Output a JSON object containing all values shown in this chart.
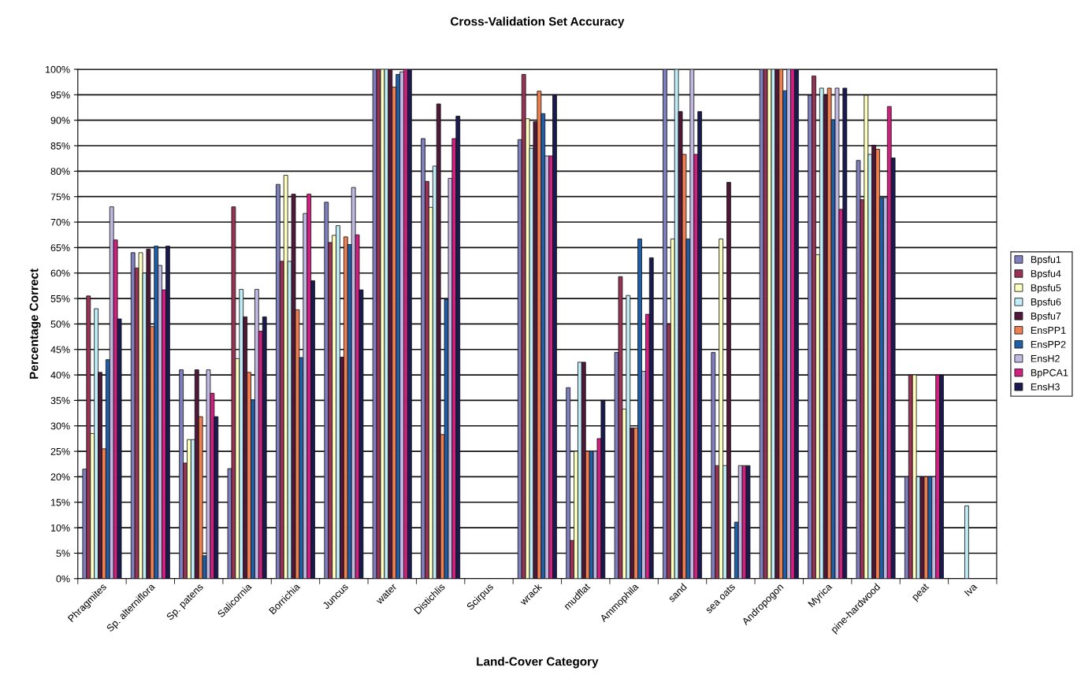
{
  "chart_data": {
    "type": "bar",
    "title": "Cross-Validation Set Accuracy",
    "xlabel": "Land-Cover Category",
    "ylabel": "Percentage Correct",
    "categories": [
      "Phragmites",
      "Sp. alterniflora",
      "Sp. patens",
      "Salicornia",
      "Borrichia",
      "Juncus",
      "water",
      "Distichlis",
      "Scirpus",
      "wrack",
      "mudflat",
      "Ammophila",
      "sand",
      "sea oats",
      "Andropogon",
      "Myrica",
      "pine-hardwood",
      "peat",
      "Iva"
    ],
    "series": [
      {
        "name": "Bpsfu1",
        "color": "#8080c0",
        "values": [
          21.5,
          64,
          41,
          21.6,
          77.4,
          73.9,
          100,
          86.4,
          null,
          86.2,
          37.5,
          44.4,
          100,
          44.4,
          100,
          94.9,
          82.1,
          20,
          null
        ]
      },
      {
        "name": "Bpsfu4",
        "color": "#993355",
        "values": [
          55.5,
          61,
          22.7,
          73,
          62.3,
          66,
          100,
          78,
          null,
          99,
          7.5,
          59.3,
          50,
          22.2,
          100,
          98.7,
          74.4,
          40,
          null
        ]
      },
      {
        "name": "Bpsfu5",
        "color": "#ffffc0",
        "values": [
          28.5,
          64,
          27.3,
          43.2,
          79.2,
          67.4,
          100,
          72.9,
          null,
          90.3,
          25,
          33.3,
          66.7,
          66.7,
          100,
          63.6,
          94.9,
          40,
          null
        ]
      },
      {
        "name": "Bpsfu6",
        "color": "#c0ecf8",
        "values": [
          53,
          60,
          27.3,
          56.8,
          62.3,
          69.3,
          100,
          81,
          null,
          84.5,
          42.5,
          55.6,
          100,
          22.2,
          100,
          96.3,
          83.3,
          20,
          14.3
        ]
      },
      {
        "name": "Bpsfu7",
        "color": "#501838",
        "values": [
          40.5,
          64.7,
          41,
          51.4,
          75.5,
          43.5,
          100,
          93.2,
          null,
          89.7,
          42.5,
          29.6,
          91.7,
          77.8,
          100,
          94.9,
          85.1,
          20,
          null
        ]
      },
      {
        "name": "EnsPP1",
        "color": "#ef7f50",
        "values": [
          25.5,
          49.5,
          31.8,
          40.5,
          52.8,
          67.1,
          96.5,
          28.3,
          null,
          95.7,
          25,
          29.6,
          83.3,
          null,
          100,
          96.3,
          84.3,
          20,
          null
        ]
      },
      {
        "name": "EnsPP2",
        "color": "#1f5fa8",
        "values": [
          43,
          65.3,
          4.5,
          35.1,
          43.4,
          65.6,
          99,
          54.8,
          null,
          91.3,
          25,
          66.7,
          66.7,
          11.1,
          95.8,
          90.1,
          74.8,
          20,
          null
        ]
      },
      {
        "name": "EnsH2",
        "color": "#c0b8e0",
        "values": [
          73,
          61.5,
          41,
          56.8,
          71.7,
          76.8,
          99.5,
          78.6,
          null,
          83,
          25,
          40.7,
          100,
          22.2,
          100,
          96.3,
          74.8,
          20,
          null
        ]
      },
      {
        "name": "BpPCA1",
        "color": "#d02080",
        "values": [
          66.5,
          56.7,
          36.4,
          48.6,
          75.5,
          67.5,
          100,
          86.4,
          null,
          83,
          27.5,
          51.9,
          83.3,
          22.2,
          100,
          72.5,
          92.7,
          40,
          null
        ]
      },
      {
        "name": "EnsH3",
        "color": "#1a1a50",
        "values": [
          51,
          65.3,
          31.8,
          51.4,
          58.5,
          56.7,
          100,
          90.8,
          null,
          95,
          35,
          63,
          91.7,
          22.2,
          100,
          96.3,
          82.6,
          40,
          null
        ]
      }
    ],
    "ylim": [
      0,
      100
    ],
    "yticks": [
      {
        "value": 0,
        "label": "0%"
      },
      {
        "value": 5,
        "label": "5%"
      },
      {
        "value": 10,
        "label": "10%"
      },
      {
        "value": 15,
        "label": "15%"
      },
      {
        "value": 20,
        "label": "20%"
      },
      {
        "value": 25,
        "label": "25%"
      },
      {
        "value": 30,
        "label": "30%"
      },
      {
        "value": 35,
        "label": "35%"
      },
      {
        "value": 40,
        "label": "40%"
      },
      {
        "value": 45,
        "label": "45%"
      },
      {
        "value": 50,
        "label": "50%"
      },
      {
        "value": 55,
        "label": "55%"
      },
      {
        "value": 60,
        "label": "60%"
      },
      {
        "value": 65,
        "label": "65%"
      },
      {
        "value": 70,
        "label": "70%"
      },
      {
        "value": 75,
        "label": "75%"
      },
      {
        "value": 80,
        "label": "80%"
      },
      {
        "value": 85,
        "label": "85%"
      },
      {
        "value": 90,
        "label": "90%"
      },
      {
        "value": 95,
        "label": "95%"
      },
      {
        "value": 100,
        "label": "100%"
      }
    ],
    "grid": "y",
    "legend": "right"
  }
}
